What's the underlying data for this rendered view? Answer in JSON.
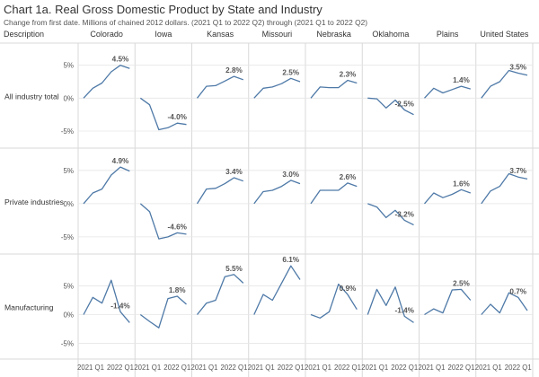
{
  "title": "Chart 1a. Real Gross Domestic Product by State and Industry",
  "subtitle": "Change from first date. Millions of chained 2012 dollars. (2021 Q1 to 2022 Q2) through (2021 Q1 to 2022 Q2)",
  "colors": {
    "line": "#4e79a7",
    "grid": "#e6e6e6",
    "divider": "#d9d9d9",
    "text": "#333333",
    "label": "#555555"
  },
  "chart_data": {
    "type": "line",
    "row_header": "Description",
    "columns": [
      "Colorado",
      "Iowa",
      "Kansas",
      "Missouri",
      "Nebraska",
      "Oklahoma",
      "Plains",
      "United States"
    ],
    "x": [
      "2021 Q1",
      "2021 Q2",
      "2021 Q3",
      "2021 Q4",
      "2022 Q1",
      "2022 Q2"
    ],
    "x_tick_labels": [
      "2021 Q1",
      "2022 Q1"
    ],
    "y_tick_labels": [
      "5%",
      "0%",
      "-5%"
    ],
    "rows": [
      {
        "name": "All industry total",
        "ylim": [
          -6.5,
          7
        ],
        "series": [
          [
            0,
            1.5,
            2.3,
            4.0,
            5.0,
            4.5
          ],
          [
            0,
            -1.0,
            -4.8,
            -4.5,
            -3.8,
            -4.0
          ],
          [
            0,
            1.8,
            1.9,
            2.6,
            3.3,
            2.8
          ],
          [
            0,
            1.5,
            1.7,
            2.2,
            3.0,
            2.5
          ],
          [
            0,
            1.7,
            1.6,
            1.6,
            2.7,
            2.3
          ],
          [
            0,
            -0.1,
            -1.5,
            -0.3,
            -1.8,
            -2.5
          ],
          [
            0,
            1.5,
            0.8,
            1.3,
            1.8,
            1.4
          ],
          [
            0,
            1.8,
            2.5,
            4.2,
            3.8,
            3.5
          ]
        ],
        "end_labels": [
          "4.5%",
          "-4.0%",
          "2.8%",
          "2.5%",
          "2.3%",
          "-2.5%",
          "1.4%",
          "3.5%"
        ]
      },
      {
        "name": "Private industries",
        "ylim": [
          -6.5,
          7
        ],
        "series": [
          [
            0,
            1.6,
            2.2,
            4.3,
            5.5,
            4.9
          ],
          [
            0,
            -1.2,
            -5.3,
            -5.0,
            -4.4,
            -4.6
          ],
          [
            0,
            2.2,
            2.3,
            3.0,
            3.9,
            3.4
          ],
          [
            0,
            1.8,
            2.0,
            2.6,
            3.5,
            3.0
          ],
          [
            0,
            2.0,
            2.0,
            2.0,
            3.1,
            2.6
          ],
          [
            0,
            -0.5,
            -2.1,
            -1.0,
            -2.5,
            -3.2
          ],
          [
            0,
            1.6,
            0.9,
            1.4,
            2.1,
            1.6
          ],
          [
            0,
            1.9,
            2.6,
            4.5,
            4.0,
            3.7
          ]
        ],
        "end_labels": [
          "4.9%",
          "-4.6%",
          "3.4%",
          "3.0%",
          "2.6%",
          "-3.2%",
          "1.6%",
          "3.7%"
        ]
      },
      {
        "name": "Manufacturing",
        "ylim": [
          -6.5,
          9
        ],
        "series": [
          [
            0,
            3.0,
            2.0,
            6.0,
            0.5,
            -1.4
          ],
          [
            0,
            -1.2,
            -2.3,
            2.8,
            3.2,
            1.8
          ],
          [
            0,
            2.0,
            2.5,
            6.6,
            7.0,
            5.5
          ],
          [
            0,
            3.5,
            2.5,
            5.5,
            8.5,
            6.1
          ],
          [
            0,
            -0.6,
            0.5,
            5.3,
            3.5,
            0.9
          ],
          [
            0,
            4.4,
            1.6,
            4.8,
            -0.3,
            -1.4
          ],
          [
            0,
            1.0,
            0.3,
            4.3,
            4.4,
            2.5
          ],
          [
            0,
            1.8,
            0.3,
            3.8,
            3.0,
            0.7
          ]
        ],
        "end_labels": [
          "-1.4%",
          "1.8%",
          "5.5%",
          "6.1%",
          "0.9%",
          "-1.4%",
          "2.5%",
          "0.7%"
        ]
      }
    ]
  }
}
